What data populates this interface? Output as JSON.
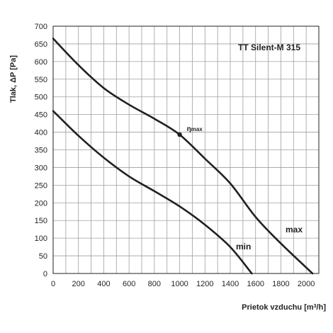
{
  "chart_data": {
    "type": "line",
    "title": "TT Silent-M 315",
    "xlabel": "Prietok vzduchu  [m³/h]",
    "ylabel": "Tlak, ΔP [Pa]",
    "xlim": [
      0,
      2100
    ],
    "ylim": [
      0,
      700
    ],
    "xticks": [
      0,
      200,
      400,
      600,
      800,
      1000,
      1200,
      1400,
      1600,
      1800,
      2000
    ],
    "yticks": [
      0,
      50,
      100,
      150,
      200,
      250,
      300,
      350,
      400,
      450,
      500,
      550,
      600,
      650,
      700
    ],
    "grid": true,
    "series": [
      {
        "name": "max",
        "x": [
          0,
          200,
          400,
          600,
          800,
          1000,
          1200,
          1400,
          1600,
          1800,
          2050
        ],
        "y": [
          665,
          590,
          525,
          478,
          438,
          393,
          325,
          255,
          160,
          85,
          0
        ]
      },
      {
        "name": "min",
        "x": [
          0,
          200,
          400,
          600,
          800,
          1000,
          1200,
          1400,
          1570
        ],
        "y": [
          460,
          390,
          328,
          275,
          233,
          190,
          138,
          75,
          0
        ]
      }
    ],
    "annotations": [
      {
        "text": "η",
        "sub": "max",
        "x": 1000,
        "y": 393
      }
    ]
  }
}
